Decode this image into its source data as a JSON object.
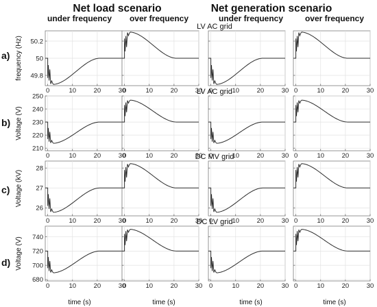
{
  "figure": {
    "scenarios": [
      {
        "label": "Net load scenario",
        "columns": [
          "under frequency",
          "over frequency"
        ]
      },
      {
        "label": "Net generation scenario",
        "columns": [
          "under frequency",
          "over frequency"
        ]
      }
    ],
    "rows": [
      "a)",
      "b)",
      "c)",
      "d)"
    ],
    "row_titles": [
      "LV AC grid",
      "LV AC grid",
      "DC MV grid",
      "DC LV grid"
    ],
    "x_label": "time (s)",
    "x_ticks": [
      "0",
      "10",
      "20",
      "30"
    ]
  },
  "chart_data": {
    "type": "line",
    "grid": true,
    "panel_layout": "4 rows x 4 columns",
    "x": {
      "label": "time (s)",
      "lim": [
        -1,
        30
      ],
      "ticks": [
        0,
        10,
        20,
        30
      ]
    },
    "rows": [
      {
        "id": "a)",
        "title": "LV AC grid",
        "ylabel": "frequency (Hz)",
        "ylim": [
          49.68,
          50.32
        ],
        "yticks": [
          49.8,
          50,
          50.2
        ],
        "ytick_labels": [
          "49.8",
          "50",
          "50.2"
        ],
        "baseline": 50,
        "columns": [
          {
            "scenario": "Net load scenario",
            "case": "under frequency",
            "initial": 50,
            "peak": 49.7,
            "extra_spikes": [
              49.77,
              49.74
            ],
            "steady_from": 21
          },
          {
            "scenario": "Net load scenario",
            "case": "over frequency",
            "initial": 50,
            "peak": 50.3,
            "extra_spikes": [
              50.23,
              50.26
            ],
            "steady_from": 21
          },
          {
            "scenario": "Net generation scenario",
            "case": "under frequency",
            "initial": 50,
            "peak": 49.7,
            "extra_spikes": [
              49.77,
              49.74
            ],
            "steady_from": 21
          },
          {
            "scenario": "Net generation scenario",
            "case": "over frequency",
            "initial": 50,
            "peak": 50.3,
            "extra_spikes": [
              50.23,
              50.26
            ],
            "steady_from": 21
          }
        ]
      },
      {
        "id": "b)",
        "title": "LV AC grid",
        "ylabel": "Voltage (V)",
        "ylim": [
          208,
          250
        ],
        "yticks": [
          210,
          220,
          230,
          240,
          250
        ],
        "ytick_labels": [
          "210",
          "220",
          "230",
          "240",
          "250"
        ],
        "baseline": 230,
        "columns": [
          {
            "scenario": "Net load scenario",
            "case": "under frequency",
            "initial": 230,
            "peak": 214,
            "extra_spikes": [
              217,
              215
            ],
            "steady_from": 21
          },
          {
            "scenario": "Net load scenario",
            "case": "over frequency",
            "initial": 230,
            "peak": 246.5,
            "extra_spikes": [
              243,
              245
            ],
            "steady_from": 21
          },
          {
            "scenario": "Net generation scenario",
            "case": "under frequency",
            "initial": 230,
            "peak": 214,
            "extra_spikes": [
              217,
              215
            ],
            "steady_from": 21
          },
          {
            "scenario": "Net generation scenario",
            "case": "over frequency",
            "initial": 230,
            "peak": 246.5,
            "extra_spikes": [
              243,
              245
            ],
            "steady_from": 21
          }
        ]
      },
      {
        "id": "c)",
        "title": "DC MV grid",
        "ylabel": "Voltage (kV)",
        "ylim": [
          25.6,
          28.35
        ],
        "yticks": [
          26,
          27,
          28
        ],
        "ytick_labels": [
          "26",
          "27",
          "28"
        ],
        "baseline": 27,
        "columns": [
          {
            "scenario": "Net load scenario",
            "case": "under frequency",
            "initial": 27,
            "peak": 25.8,
            "extra_spikes": [
              26.1,
              25.95
            ],
            "steady_from": 21
          },
          {
            "scenario": "Net load scenario",
            "case": "over frequency",
            "initial": 27,
            "peak": 28.2,
            "extra_spikes": [
              27.9,
              28.05
            ],
            "steady_from": 21
          },
          {
            "scenario": "Net generation scenario",
            "case": "under frequency",
            "initial": 27,
            "peak": 25.8,
            "extra_spikes": [
              26.1,
              25.95
            ],
            "steady_from": 21
          },
          {
            "scenario": "Net generation scenario",
            "case": "over frequency",
            "initial": 27,
            "peak": 28.2,
            "extra_spikes": [
              27.9,
              28.05
            ],
            "steady_from": 21
          }
        ]
      },
      {
        "id": "d)",
        "title": "DC LV grid",
        "ylabel": "Voltage (V)",
        "ylim": [
          678,
          755
        ],
        "yticks": [
          680,
          700,
          720,
          740
        ],
        "ytick_labels": [
          "680",
          "700",
          "720",
          "740"
        ],
        "baseline": 720,
        "columns": [
          {
            "scenario": "Net load scenario",
            "case": "under frequency",
            "initial": 720,
            "peak": 690,
            "extra_spikes": [
              696,
              692
            ],
            "steady_from": 21
          },
          {
            "scenario": "Net load scenario",
            "case": "over frequency",
            "initial": 720,
            "peak": 750,
            "extra_spikes": [
              744,
              748
            ],
            "steady_from": 21
          },
          {
            "scenario": "Net generation scenario",
            "case": "under frequency",
            "initial": 720,
            "peak": 690,
            "extra_spikes": [
              696,
              692
            ],
            "steady_from": 21
          },
          {
            "scenario": "Net generation scenario",
            "case": "over frequency",
            "initial": 720,
            "peak": 750,
            "extra_spikes": [
              744,
              748
            ],
            "steady_from": 21
          }
        ]
      }
    ]
  }
}
